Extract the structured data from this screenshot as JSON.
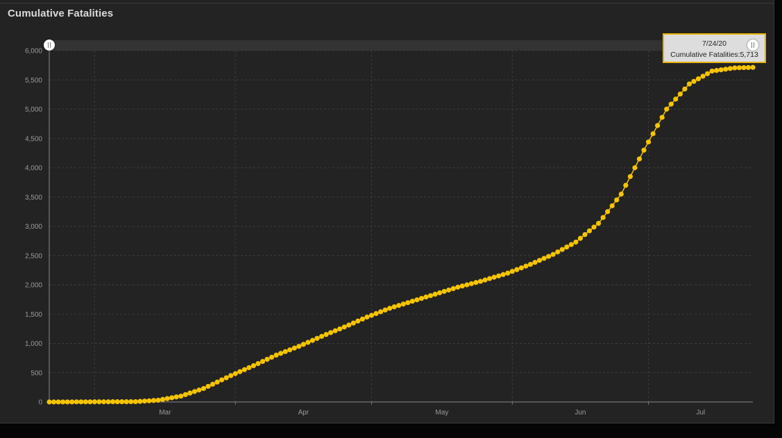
{
  "panel": {
    "title": "Cumulative Fatalities"
  },
  "colors": {
    "background": "#232323",
    "series": "#f5c400",
    "grid": "#3c3c3c",
    "axis_text": "#9a9a9a",
    "tooltip_border": "#e8b300"
  },
  "tooltip": {
    "date": "7/24/20",
    "series_label": "Cumulative Fatalities",
    "value_text": "5,713",
    "separator": ":"
  },
  "range_slider": {
    "left_handle_icon": "slider-handle-icon",
    "right_handle_icon": "slider-handle-icon"
  },
  "chart_data": {
    "type": "line",
    "title": "Cumulative Fatalities",
    "xlabel": "",
    "ylabel": "",
    "x_start": "2020-02-20",
    "x_end": "2020-07-24",
    "ylim": [
      0,
      6000
    ],
    "y_ticks": [
      0,
      500,
      1000,
      1500,
      2000,
      2500,
      3000,
      3500,
      4000,
      4500,
      5000,
      5500,
      6000
    ],
    "y_tick_labels": [
      "0",
      "500",
      "1,000",
      "1,500",
      "2,000",
      "2,500",
      "3,000",
      "3,500",
      "4,000",
      "4,500",
      "5,000",
      "5,500",
      "6,000"
    ],
    "x_tick_labels": [
      "Mar",
      "Apr",
      "May",
      "Jun",
      "Jul"
    ],
    "month_boundaries": [
      "2020-03-01",
      "2020-04-01",
      "2020-05-01",
      "2020-06-01",
      "2020-07-01"
    ],
    "grid": true,
    "marker": "circle",
    "anchors": [
      {
        "date": "2020-02-20",
        "value": 0
      },
      {
        "date": "2020-03-10",
        "value": 5
      },
      {
        "date": "2020-03-15",
        "value": 30
      },
      {
        "date": "2020-03-20",
        "value": 100
      },
      {
        "date": "2020-03-25",
        "value": 230
      },
      {
        "date": "2020-03-31",
        "value": 450
      },
      {
        "date": "2020-04-05",
        "value": 620
      },
      {
        "date": "2020-04-10",
        "value": 800
      },
      {
        "date": "2020-04-15",
        "value": 950
      },
      {
        "date": "2020-04-20",
        "value": 1120
      },
      {
        "date": "2020-04-25",
        "value": 1280
      },
      {
        "date": "2020-04-30",
        "value": 1450
      },
      {
        "date": "2020-05-05",
        "value": 1600
      },
      {
        "date": "2020-05-10",
        "value": 1720
      },
      {
        "date": "2020-05-15",
        "value": 1840
      },
      {
        "date": "2020-05-20",
        "value": 1960
      },
      {
        "date": "2020-05-25",
        "value": 2060
      },
      {
        "date": "2020-05-31",
        "value": 2200
      },
      {
        "date": "2020-06-05",
        "value": 2350
      },
      {
        "date": "2020-06-10",
        "value": 2520
      },
      {
        "date": "2020-06-15",
        "value": 2730
      },
      {
        "date": "2020-06-20",
        "value": 3050
      },
      {
        "date": "2020-06-25",
        "value": 3550
      },
      {
        "date": "2020-06-30",
        "value": 4300
      },
      {
        "date": "2020-07-05",
        "value": 5000
      },
      {
        "date": "2020-07-10",
        "value": 5430
      },
      {
        "date": "2020-07-15",
        "value": 5650
      },
      {
        "date": "2020-07-20",
        "value": 5705
      },
      {
        "date": "2020-07-24",
        "value": 5713
      }
    ]
  }
}
